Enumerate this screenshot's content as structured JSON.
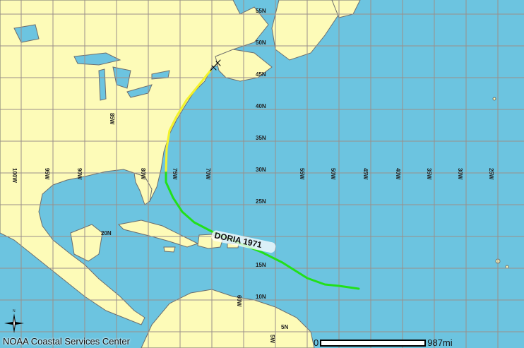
{
  "map": {
    "water_color": "#6cc4e0",
    "land_color": "#fdfbb8",
    "grid_color": "#9a8f8a",
    "longitude_labels": [
      "100W",
      "95W",
      "90W",
      "85W",
      "80W",
      "75W",
      "70W",
      "55W",
      "50W",
      "45W",
      "40W",
      "35W",
      "30W",
      "25W",
      "60W",
      "5W"
    ],
    "latitude_labels": [
      "55N",
      "50N",
      "45N",
      "40N",
      "35N",
      "30N",
      "25N",
      "20N",
      "15N",
      "10N",
      "5N"
    ]
  },
  "storm": {
    "label": "DORIA 1971",
    "track_colors": {
      "tropical_storm": "#22e01a",
      "tropical_depression_extratropical": "#f2f22a",
      "extratropical": "#000000"
    }
  },
  "compass": {
    "icon": "compass-rose-icon",
    "north_label": "N"
  },
  "credit": "NOAA Coastal Services Center",
  "scale_bar": {
    "start": "0",
    "end": "987mi"
  }
}
